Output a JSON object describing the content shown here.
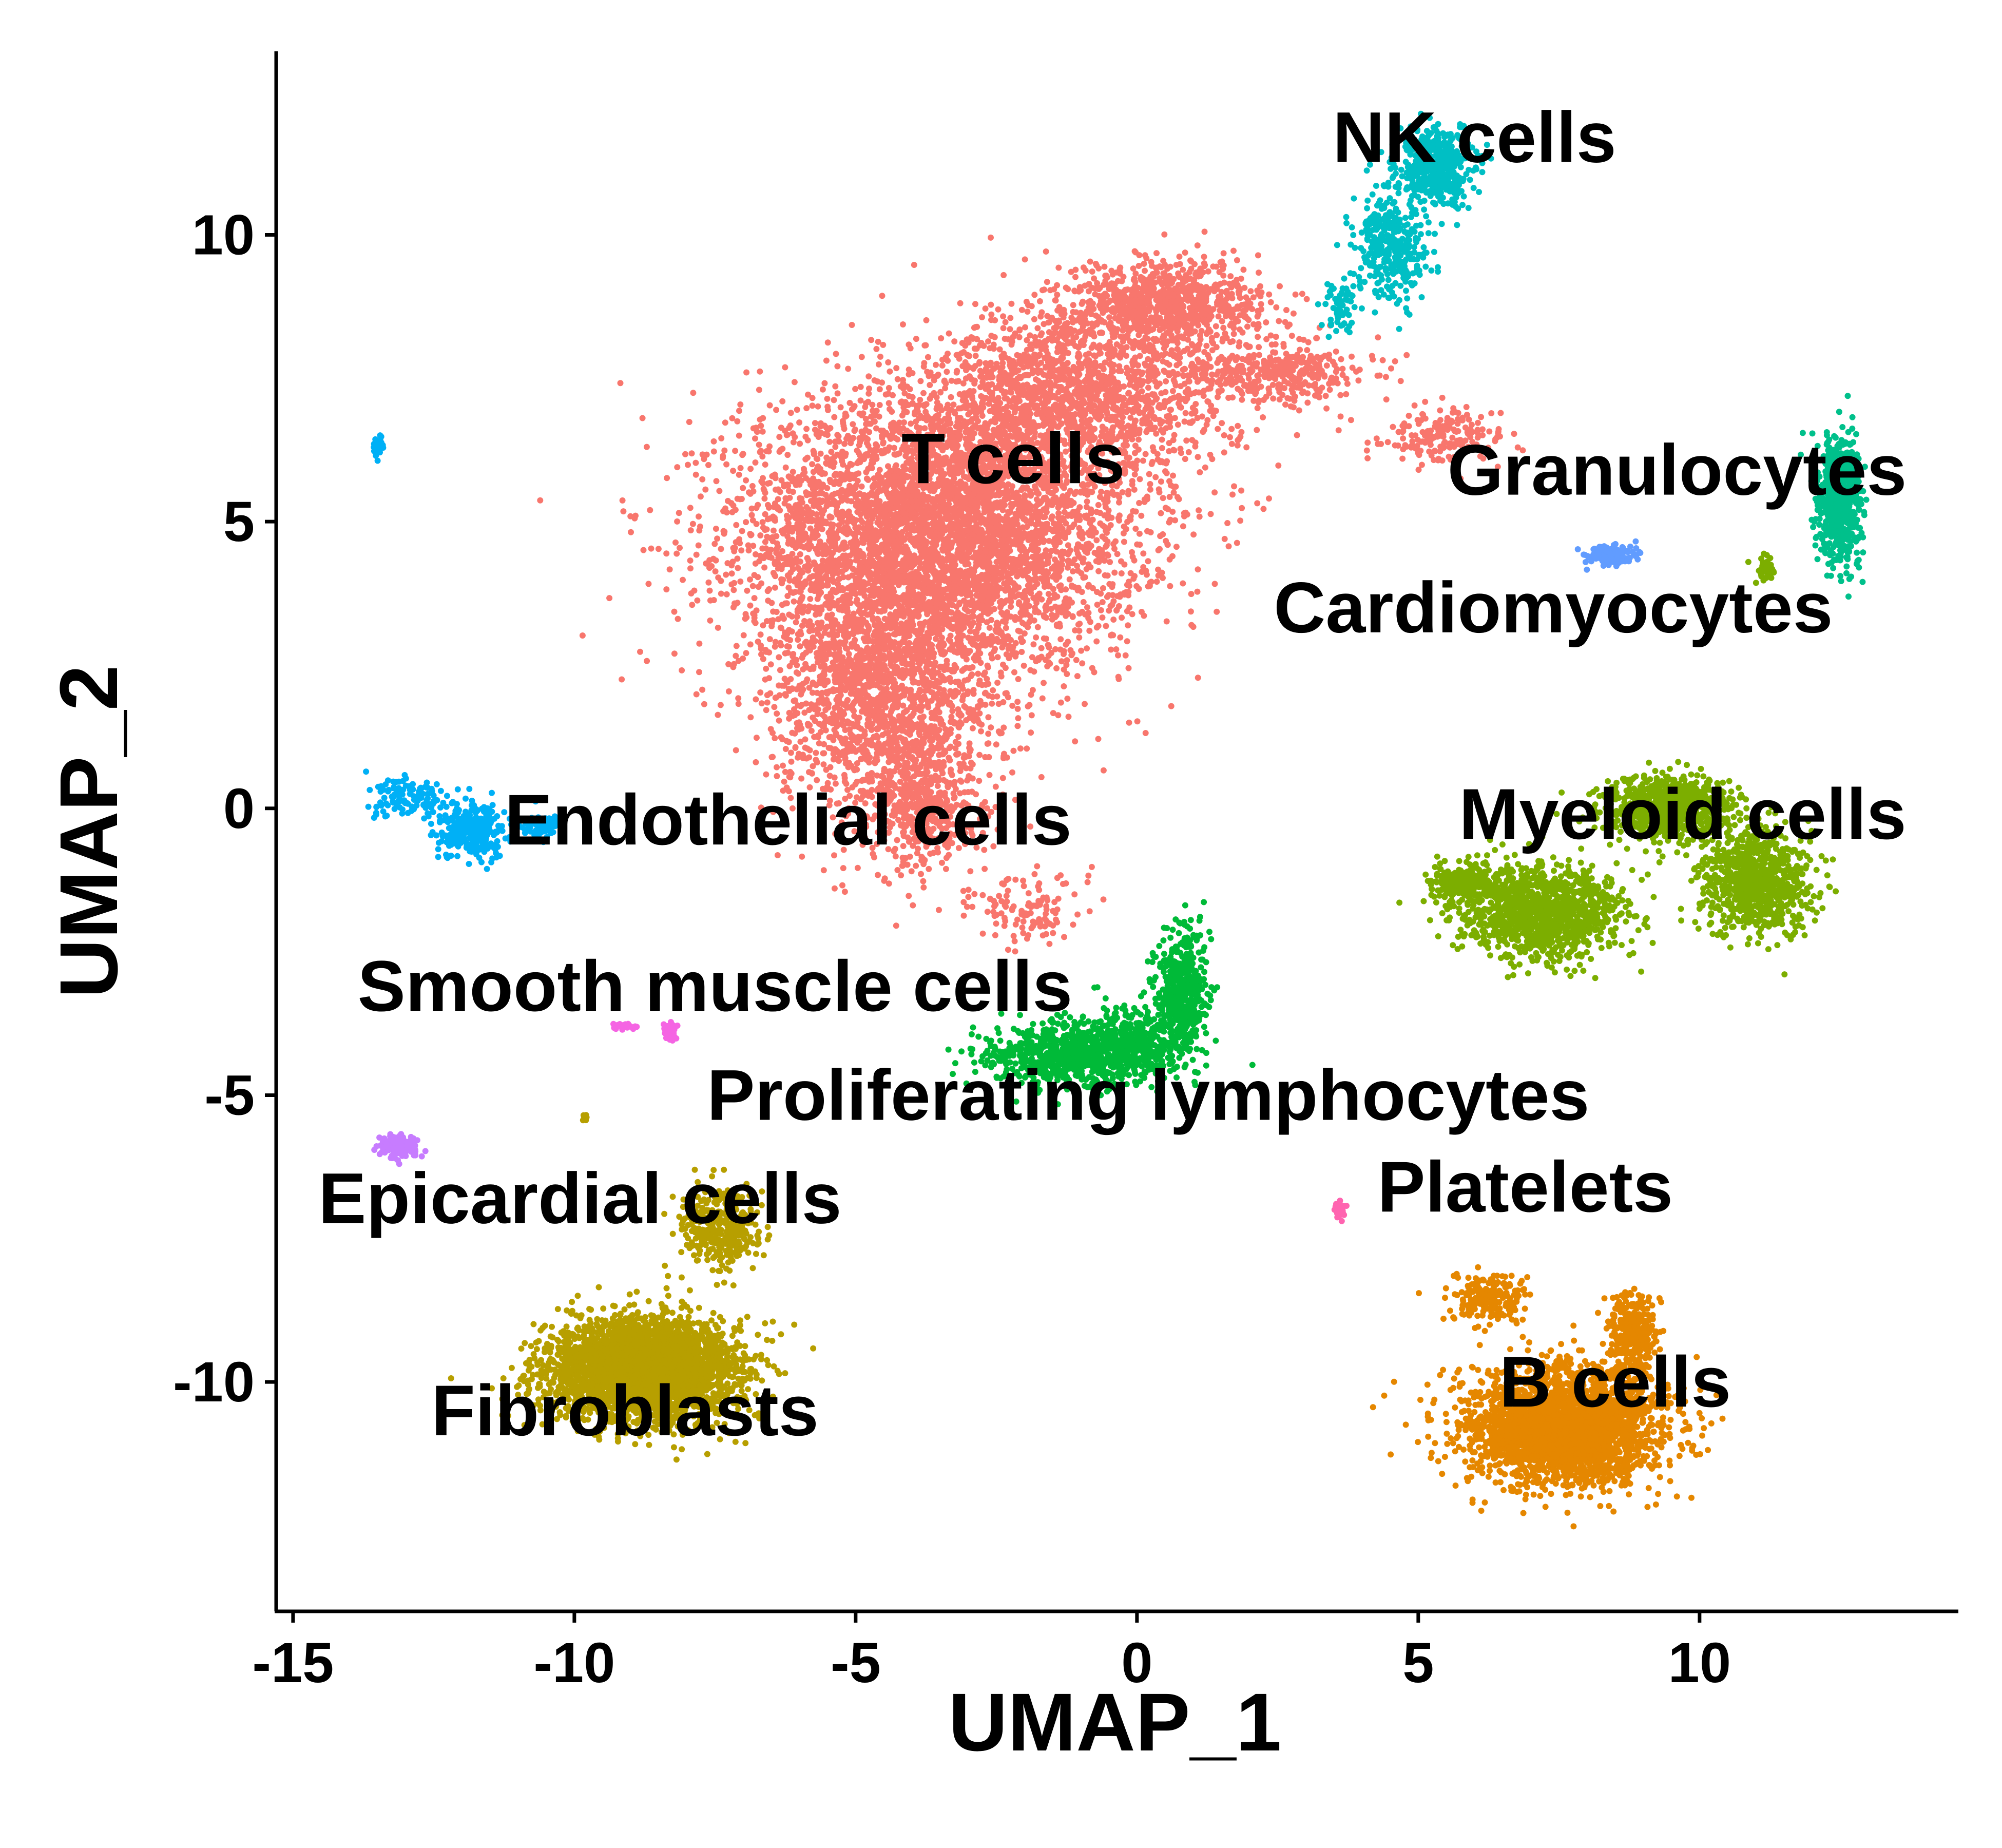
{
  "chart_data": {
    "type": "scatter",
    "title": "",
    "xlabel": "UMAP_1",
    "ylabel": "UMAP_2",
    "xlim": [
      -15.3,
      14.6
    ],
    "ylim": [
      -14,
      13.2
    ],
    "xticks": [
      -15,
      -10,
      -5,
      0,
      5,
      10
    ],
    "yticks": [
      -10,
      -5,
      0,
      5,
      10
    ],
    "grid": false,
    "legend": "none (clusters labeled in place)",
    "series": [
      {
        "name": "T cells",
        "color": "#F8766D",
        "label_pos": [
          -2.2,
          6.1
        ],
        "blobs": [
          [
            -3.5,
            4.8,
            3.2,
            2.2,
            5200
          ],
          [
            -4.5,
            2.0,
            1.8,
            2.0,
            1800
          ],
          [
            -1.0,
            7.2,
            2.5,
            1.3,
            1600
          ],
          [
            0.5,
            8.8,
            1.6,
            0.7,
            900
          ],
          [
            -3.8,
            0.0,
            0.8,
            1.0,
            400
          ],
          [
            2.5,
            7.6,
            1.5,
            0.5,
            350
          ],
          [
            5.5,
            6.5,
            1.0,
            0.4,
            180
          ],
          [
            -2.0,
            -1.8,
            0.9,
            0.6,
            120
          ]
        ]
      },
      {
        "name": "NK cells",
        "color": "#00BFC4",
        "label_pos": [
          6.0,
          11.7
        ],
        "blobs": [
          [
            5.3,
            11.2,
            0.6,
            0.6,
            450
          ],
          [
            4.5,
            9.8,
            0.6,
            0.9,
            350
          ],
          [
            3.6,
            8.8,
            0.3,
            0.5,
            60
          ]
        ]
      },
      {
        "name": "Granulocytes",
        "color": "#00C08B",
        "label_pos": [
          9.6,
          5.9
        ],
        "blobs": [
          [
            12.5,
            5.4,
            0.35,
            1.0,
            700
          ]
        ]
      },
      {
        "name": "Cardiomyocytes",
        "color": "#619CFF",
        "label_pos": [
          7.4,
          3.5
        ],
        "blobs": [
          [
            8.4,
            4.4,
            0.4,
            0.15,
            160
          ]
        ]
      },
      {
        "name": "Myeloid cells",
        "color": "#7CAE00",
        "label_pos": [
          9.7,
          -0.1
        ],
        "blobs": [
          [
            9.5,
            0.0,
            1.0,
            0.5,
            900
          ],
          [
            7.2,
            -1.8,
            1.3,
            0.7,
            1200
          ],
          [
            11.0,
            -1.3,
            0.9,
            0.8,
            800
          ],
          [
            5.8,
            -1.3,
            0.5,
            0.3,
            200
          ],
          [
            11.2,
            4.2,
            0.2,
            0.2,
            40
          ]
        ]
      },
      {
        "name": "Endothelial cells",
        "color": "#00B0F6",
        "label_pos": [
          -6.2,
          -0.2
        ],
        "blobs": [
          [
            -11.8,
            -0.4,
            0.6,
            0.4,
            320
          ],
          [
            -13.0,
            0.2,
            0.6,
            0.3,
            120
          ],
          [
            -10.6,
            -0.3,
            0.3,
            0.2,
            60
          ],
          [
            -13.5,
            6.3,
            0.1,
            0.15,
            30
          ]
        ]
      },
      {
        "name": "Proliferating lymphocytes",
        "color": "#00BA38",
        "label_pos": [
          0.2,
          -5.0
        ],
        "blobs": [
          [
            -1.2,
            -4.3,
            1.4,
            0.5,
            800
          ],
          [
            0.8,
            -3.2,
            0.4,
            1.0,
            500
          ],
          [
            0.0,
            -4.0,
            0.8,
            0.6,
            300
          ]
        ]
      },
      {
        "name": "Smooth muscle cells",
        "color": "#F564E3",
        "label_pos": [
          -7.5,
          -3.1
        ],
        "blobs": [
          [
            -9.1,
            -3.8,
            0.2,
            0.05,
            30
          ],
          [
            -8.3,
            -3.9,
            0.15,
            0.15,
            40
          ]
        ]
      },
      {
        "name": "Epicardial cells",
        "color": "#C77CFF",
        "label_pos": [
          -9.9,
          -6.8
        ],
        "blobs": [
          [
            -13.1,
            -5.9,
            0.35,
            0.2,
            140
          ]
        ]
      },
      {
        "name": "Platelets",
        "color": "#FF64B0",
        "label_pos": [
          6.9,
          -6.6
        ],
        "blobs": [
          [
            3.6,
            -7.0,
            0.1,
            0.15,
            30
          ]
        ]
      },
      {
        "name": "Fibroblasts",
        "color": "#B79F00",
        "label_pos": [
          -9.1,
          -10.5
        ],
        "blobs": [
          [
            -8.8,
            -9.8,
            1.5,
            0.8,
            3200
          ],
          [
            -7.4,
            -7.3,
            0.6,
            0.6,
            350
          ],
          [
            -9.8,
            -5.4,
            0.05,
            0.05,
            6
          ]
        ]
      },
      {
        "name": "B cells",
        "color": "#E58700",
        "label_pos": [
          8.5,
          -10.0
        ],
        "blobs": [
          [
            7.6,
            -10.8,
            1.5,
            0.9,
            3000
          ],
          [
            8.8,
            -9.2,
            0.4,
            0.6,
            300
          ],
          [
            6.3,
            -8.6,
            0.6,
            0.4,
            200
          ]
        ]
      }
    ]
  }
}
